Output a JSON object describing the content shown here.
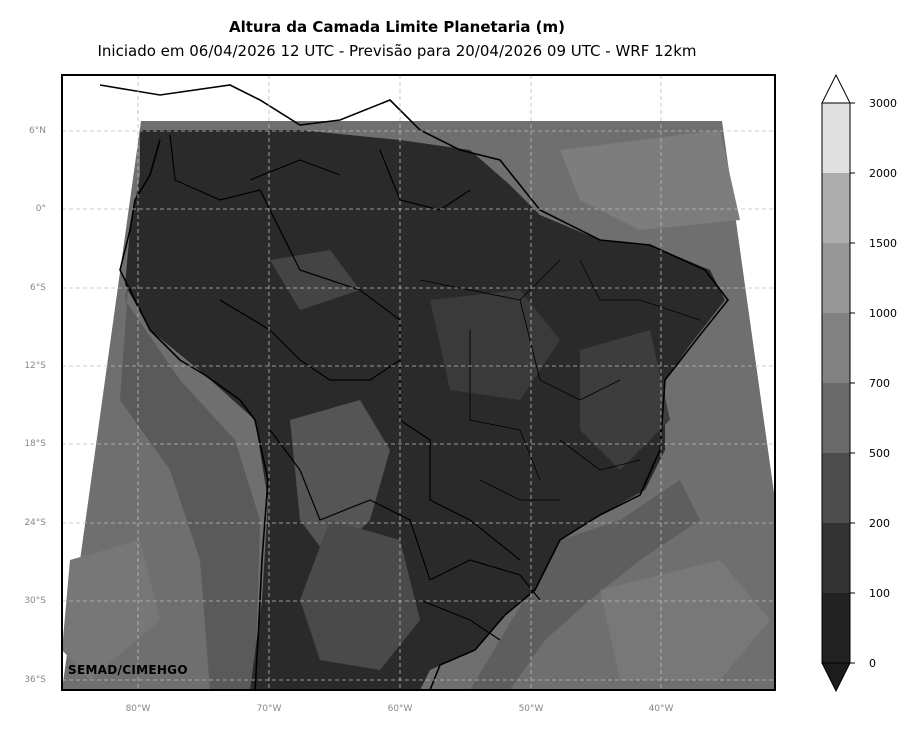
{
  "header": {
    "title": "Altura da Camada Limite Planetaria (m)",
    "subtitle": "Iniciado em 06/04/2026 12 UTC - Previsão para 20/04/2026 09 UTC - WRF 12km"
  },
  "map": {
    "variable": "Planetary boundary layer height",
    "units": "m",
    "lat_ticks": [
      "6°N",
      "0°",
      "6°S",
      "12°S",
      "18°S",
      "24°S",
      "30°S",
      "36°S"
    ],
    "lon_ticks": [
      "80°W",
      "70°W",
      "60°W",
      "50°W",
      "40°W"
    ],
    "gridlines": true,
    "colormap": "greys"
  },
  "colorbar": {
    "levels": [
      "0",
      "100",
      "200",
      "500",
      "700",
      "1000",
      "1500",
      "2000",
      "3000"
    ],
    "colors": [
      "#1c1c1c",
      "#222222",
      "#333333",
      "#4d4d4d",
      "#6a6a6a",
      "#828282",
      "#979797",
      "#adadad",
      "#e0e0e0"
    ],
    "extend": "both"
  },
  "credit": "SEMAD/CIMEHGO"
}
